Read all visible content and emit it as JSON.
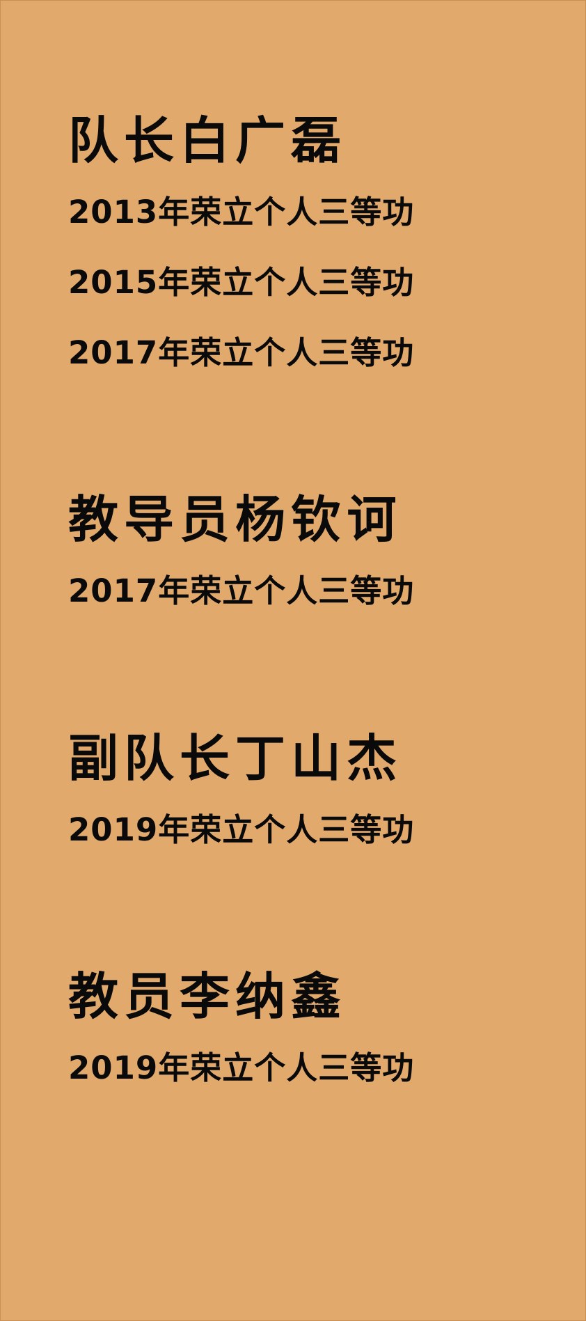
{
  "colors": {
    "background": "#e2a96c",
    "text": "#0a0a0a"
  },
  "sections": [
    {
      "name": "队长白广磊",
      "awards": [
        "2013年荣立个人三等功",
        "2015年荣立个人三等功",
        "2017年荣立个人三等功"
      ]
    },
    {
      "name": "教导员杨钦诃",
      "awards": [
        "2017年荣立个人三等功"
      ]
    },
    {
      "name": "副队长丁山杰",
      "awards": [
        "2019年荣立个人三等功"
      ]
    },
    {
      "name": "教员李纳鑫",
      "awards": [
        "2019年荣立个人三等功"
      ]
    }
  ]
}
